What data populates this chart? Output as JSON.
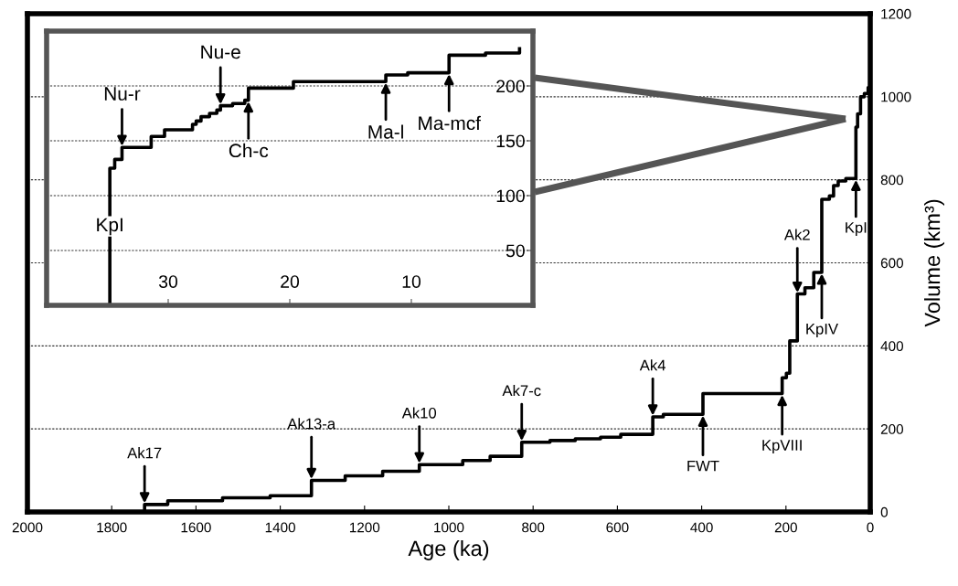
{
  "chart_data": [
    {
      "type": "step",
      "xlabel": "Age (ka)",
      "ylabel": "Volume (km³)",
      "xlim": [
        2000,
        0
      ],
      "xticks": [
        2000,
        1800,
        1600,
        1400,
        1200,
        1000,
        800,
        600,
        400,
        200,
        0
      ],
      "ylim": [
        0,
        1200
      ],
      "yticks": [
        0,
        200,
        400,
        600,
        800,
        1000,
        1200
      ],
      "grid": "y",
      "line_style": "solid",
      "series": [
        {
          "color": "#000000",
          "x": [
            1722,
            1722,
            1667,
            1537,
            1424,
            1326,
            1246,
            1157,
            1070,
            967,
            902,
            827,
            760,
            700,
            640,
            592,
            516,
            491,
            397,
            209,
            199,
            191,
            173,
            155,
            134,
            115,
            97,
            87,
            76,
            58,
            34,
            30,
            23,
            14,
            5,
            0
          ],
          "values": [
            0,
            18,
            27,
            34,
            39,
            76,
            87,
            98,
            114,
            124,
            134,
            168,
            172,
            176,
            180,
            187,
            229,
            235,
            285,
            323,
            334,
            412,
            525,
            540,
            577,
            753,
            761,
            786,
            797,
            803,
            927,
            959,
            1000,
            1008,
            1022,
            1033
          ]
        }
      ],
      "annotations": [
        {
          "text": "Ak17",
          "x": 1722,
          "y": 18
        },
        {
          "text": "Ak13-a",
          "x": 1326,
          "y": 76
        },
        {
          "text": "Ak10",
          "x": 1070,
          "y": 114
        },
        {
          "text": "Ak7-c",
          "x": 827,
          "y": 168
        },
        {
          "text": "Ak4",
          "x": 516,
          "y": 229
        },
        {
          "text": "FWT",
          "x": 397,
          "y": 235
        },
        {
          "text": "KpVIII",
          "x": 209,
          "y": 285
        },
        {
          "text": "Ak2",
          "x": 173,
          "y": 525
        },
        {
          "text": "KpIV",
          "x": 115,
          "y": 577
        },
        {
          "text": "KpI",
          "x": 34,
          "y": 803
        }
      ]
    },
    {
      "type": "step",
      "xlim": [
        40,
        0
      ],
      "xticks": [
        30,
        20,
        10
      ],
      "ylim": [
        0,
        250
      ],
      "yticks": [
        50,
        100,
        150,
        200
      ],
      "grid": "y",
      "line_style": "solid",
      "series": [
        {
          "color": "#000000",
          "x": [
            34.8,
            34.8,
            34.4,
            33.8,
            31.4,
            30.3,
            28.0,
            27.7,
            27.3,
            26.6,
            26.0,
            25.7,
            24.7,
            23.7,
            23.4,
            19.7,
            12.1,
            10.3,
            6.9,
            3.9,
            1.1
          ],
          "values": [
            0,
            125,
            133,
            144,
            154,
            160,
            165,
            168,
            172,
            175,
            178,
            182,
            184,
            187,
            198,
            204,
            210,
            212,
            228,
            230,
            234
          ]
        }
      ],
      "annotations": [
        {
          "text": "KpI",
          "x": 34.8,
          "y": 72
        },
        {
          "text": "Nu-r",
          "x": 33.8,
          "y": 144
        },
        {
          "text": "Nu-e",
          "x": 25.7,
          "y": 182
        },
        {
          "text": "Ch-c",
          "x": 23.4,
          "y": 187
        },
        {
          "text": "Ma-l",
          "x": 12.1,
          "y": 204
        },
        {
          "text": "Ma-mcf",
          "x": 6.9,
          "y": 212
        }
      ]
    }
  ]
}
